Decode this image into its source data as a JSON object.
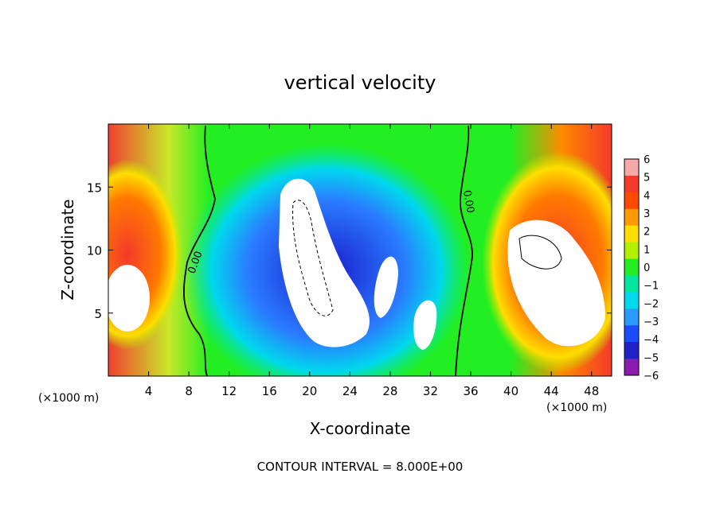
{
  "chart_data": {
    "type": "heatmap",
    "title": "vertical velocity",
    "xlabel": "X-coordinate",
    "ylabel": "Z-coordinate",
    "x_unit": "(×1000 m)",
    "x_unit_right": "(×1000 m)",
    "footer": "CONTOUR INTERVAL = 8.000E+00",
    "xlim": [
      0,
      50
    ],
    "ylim": [
      0,
      20
    ],
    "x_ticks": [
      4,
      8,
      12,
      16,
      20,
      24,
      28,
      32,
      36,
      40,
      44,
      48
    ],
    "y_ticks": [
      5,
      10,
      15
    ],
    "colorbar": {
      "min": -6,
      "max": 6,
      "levels": [
        "6",
        "5",
        "4",
        "3",
        "2",
        "1",
        "0",
        "−1",
        "−2",
        "−3",
        "−4",
        "−5",
        "−6"
      ],
      "colors": [
        "#f7a8a8",
        "#f43a2a",
        "#ff4a00",
        "#ff9a00",
        "#ffdd00",
        "#b2f000",
        "#22ee22",
        "#00e8a0",
        "#00d8ee",
        "#2a9cff",
        "#1c4cff",
        "#2020c8",
        "#8a1ab0"
      ]
    },
    "contour_labels": [
      "0.00",
      "0.00"
    ],
    "grid": false
  }
}
